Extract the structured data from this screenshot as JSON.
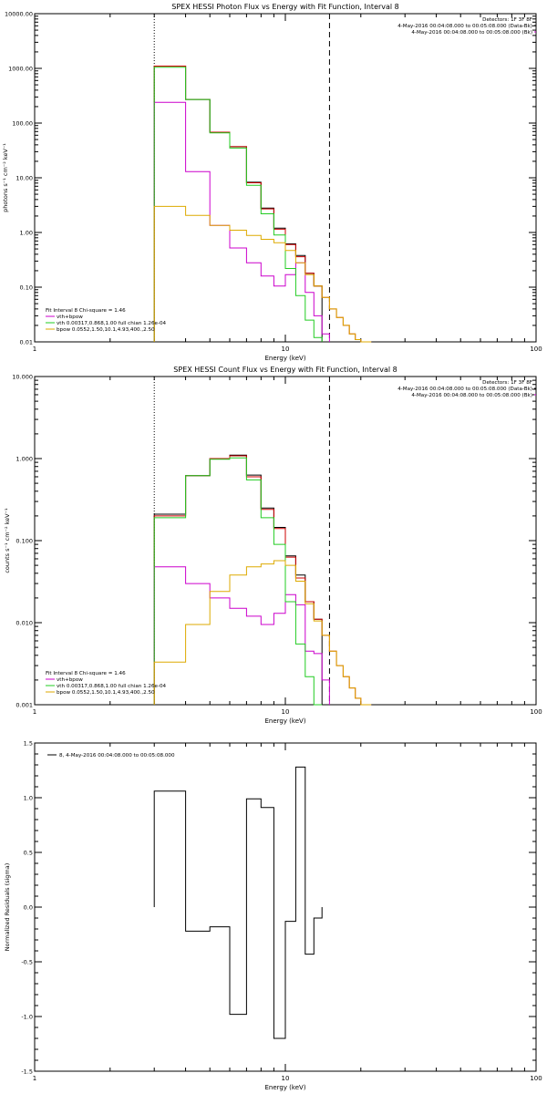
{
  "colors": {
    "background": "#ffffff",
    "axes": "#000000",
    "data": "#000000",
    "model": "#cc0000",
    "total_fit": "#cc00cc",
    "vth": "#22cc22",
    "bpow": "#ddaa00"
  },
  "chart_data": [
    {
      "type": "line",
      "title": "SPEX HESSI Photon Flux vs Energy with Fit Function, Interval 8",
      "xlabel": "Energy (keV)",
      "ylabel": "photons s⁻¹ cm⁻² keV⁻¹",
      "xscale": "log",
      "yscale": "log",
      "xlim": [
        1,
        100
      ],
      "ylim": [
        0.01,
        10000
      ],
      "xticks": [
        "1",
        "10",
        "100"
      ],
      "yticks": [
        "0.01",
        "0.10",
        "1.00",
        "10.00",
        "100.00",
        "1000.00",
        "10000.00"
      ],
      "header": [
        "Detectors: 1F 3F 8F",
        "4-May-2016 00:04:08.000 to 00:05:08.000 (Data-Bk)",
        "4-May-2016 00:04:08.000 to 00:05:08.000 (Bk)"
      ],
      "fit_label": "Fit Interval 8   Chi-square = 1.46",
      "legend": [
        "vth+bpow",
        "vth 0.00317,0.868,1.00  full chian 1.26e-04",
        "bpow 0.0552,1.50,10.1,4.93,400.,2.50"
      ],
      "fit_range": [
        3,
        15
      ],
      "edges": [
        3.0,
        4.0,
        5.0,
        6.0,
        7.0,
        8.0,
        9.0,
        10.0,
        11.0,
        12.0,
        13.0,
        14.0,
        15.0,
        16.0,
        17.0,
        18.0,
        19.0,
        20.0,
        22.0,
        24.0,
        26.0
      ],
      "series": [
        {
          "name": "4-May-2016 00:04:08.000 to 00:05:08.000 (Data-Bk)",
          "color": "#000000",
          "values": [
            1100,
            270,
            68,
            37,
            8.3,
            2.8,
            1.2,
            0.62,
            0.38,
            0.18,
            0.105,
            null,
            null,
            null,
            null,
            null,
            null,
            null,
            null,
            null
          ]
        },
        {
          "name": "vth+bpow",
          "color": "#cc0000",
          "values": [
            1100,
            270,
            68,
            37,
            8.1,
            2.7,
            1.15,
            0.6,
            0.36,
            0.18,
            0.105,
            0.065,
            0.04,
            0.028,
            0.02,
            0.014,
            0.011,
            0.01,
            null,
            null
          ]
        },
        {
          "name": "4-May-2016 00:04:08.000 to 00:05:08.000 (Bk)",
          "color": "#cc00cc",
          "values": [
            240,
            13,
            1.35,
            0.52,
            0.28,
            0.16,
            0.105,
            0.17,
            0.28,
            0.08,
            0.03,
            0.014,
            null,
            null,
            null,
            null,
            null,
            null,
            null,
            null
          ]
        },
        {
          "name": "vth 0.00317,0.868,1.00  full chian 1.26e-04",
          "color": "#22cc22",
          "values": [
            1050,
            270,
            66,
            35,
            7.3,
            2.2,
            0.9,
            0.22,
            0.07,
            0.025,
            0.012,
            null,
            null,
            null,
            null,
            null,
            null,
            null,
            null,
            null
          ]
        },
        {
          "name": "bpow 0.0552,1.50,10.1,4.93,400.,2.50",
          "color": "#ddaa00",
          "values": [
            3.0,
            2.05,
            1.35,
            1.1,
            0.88,
            0.75,
            0.65,
            0.47,
            0.28,
            0.17,
            0.105,
            0.065,
            0.04,
            0.028,
            0.02,
            0.014,
            0.011,
            0.01,
            null,
            null
          ]
        }
      ]
    },
    {
      "type": "line",
      "title": "SPEX HESSI Count Flux vs Energy with Fit Function, Interval 8",
      "xlabel": "Energy (keV)",
      "ylabel": "counts s⁻¹ cm⁻² keV⁻¹",
      "xscale": "log",
      "yscale": "log",
      "xlim": [
        1,
        100
      ],
      "ylim": [
        0.001,
        10
      ],
      "xticks": [
        "1",
        "10",
        "100"
      ],
      "yticks": [
        "0.001",
        "0.010",
        "0.100",
        "1.000",
        "10.000"
      ],
      "header": [
        "Detectors: 1F 3F 8F",
        "4-May-2016 00:04:08.000 to 00:05:08.000 (Data-Bk)",
        "4-May-2016 00:04:08.000 to 00:05:08.000 (Bk)"
      ],
      "fit_label": "Fit Interval 8   Chi-square = 1.46",
      "legend": [
        "vth+bpow",
        "vth 0.00317,0.868,1.00  full chian 1.26e-04",
        "bpow 0.0552,1.50,10.1,4.93,400.,2.50"
      ],
      "fit_range": [
        3,
        15
      ],
      "edges": [
        3.0,
        4.0,
        5.0,
        6.0,
        7.0,
        8.0,
        9.0,
        10.0,
        11.0,
        12.0,
        13.0,
        14.0,
        15.0,
        16.0,
        17.0,
        18.0,
        19.0,
        20.0,
        22.0,
        24.0,
        26.0
      ],
      "series": [
        {
          "name": "4-May-2016 00:04:08.000 to 00:05:08.000 (Data-Bk)",
          "color": "#000000",
          "values": [
            0.21,
            0.62,
            1.0,
            1.1,
            0.63,
            0.25,
            0.145,
            0.065,
            0.038,
            0.018,
            0.011,
            null,
            null,
            null,
            null,
            null,
            null,
            null,
            null,
            null
          ]
        },
        {
          "name": "vth+bpow",
          "color": "#cc0000",
          "values": [
            0.2,
            0.62,
            1.0,
            1.08,
            0.6,
            0.24,
            0.14,
            0.063,
            0.035,
            0.018,
            0.011,
            0.007,
            0.0045,
            0.003,
            0.0022,
            0.0016,
            0.0012,
            0.001,
            null,
            null
          ]
        },
        {
          "name": "4-May-2016 00:04:08.000 to 00:05:08.000 (Bk)",
          "color": "#cc00cc",
          "values": [
            0.048,
            0.03,
            0.02,
            0.015,
            0.012,
            0.0095,
            0.013,
            0.022,
            0.0165,
            0.0045,
            0.0042,
            0.002,
            null,
            null,
            null,
            null,
            null,
            null,
            null,
            null
          ]
        },
        {
          "name": "vth 0.00317,0.868,1.00  full chian 1.26e-04",
          "color": "#22cc22",
          "values": [
            0.19,
            0.62,
            0.98,
            1.02,
            0.55,
            0.19,
            0.09,
            0.018,
            0.0055,
            0.0022,
            0.001,
            null,
            null,
            null,
            null,
            null,
            null,
            null,
            null,
            null
          ]
        },
        {
          "name": "bpow 0.0552,1.50,10.1,4.93,400.,2.50",
          "color": "#ddaa00",
          "values": [
            0.0033,
            0.0095,
            0.024,
            0.038,
            0.048,
            0.052,
            0.057,
            0.05,
            0.032,
            0.017,
            0.0105,
            0.007,
            0.0045,
            0.003,
            0.0022,
            0.0016,
            0.0012,
            0.001,
            null,
            null
          ]
        }
      ]
    },
    {
      "type": "line",
      "title": "",
      "xlabel": "Energy (keV)",
      "ylabel": "Normalized Residuals (sigma)",
      "xscale": "log",
      "yscale": "linear",
      "xlim": [
        1,
        100
      ],
      "ylim": [
        -1.5,
        1.5
      ],
      "xticks": [
        "1",
        "10",
        "100"
      ],
      "yticks": [
        "-1.5",
        "-1.0",
        "-0.5",
        "0.0",
        "0.5",
        "1.0",
        "1.5"
      ],
      "legend": [
        "8,  4-May-2016 00:04:08.000 to 00:05:08.000"
      ],
      "edges": [
        3.0,
        4.0,
        5.0,
        6.0,
        7.0,
        8.0,
        9.0,
        10.0,
        11.0,
        12.0,
        13.0,
        14.0
      ],
      "series": [
        {
          "name": "8,  4-May-2016 00:04:08.000 to 00:05:08.000",
          "color": "#000000",
          "values": [
            1.06,
            -0.22,
            -0.18,
            -0.98,
            0.99,
            0.91,
            -1.2,
            -0.13,
            1.28,
            -0.43,
            -0.1
          ]
        }
      ]
    }
  ]
}
